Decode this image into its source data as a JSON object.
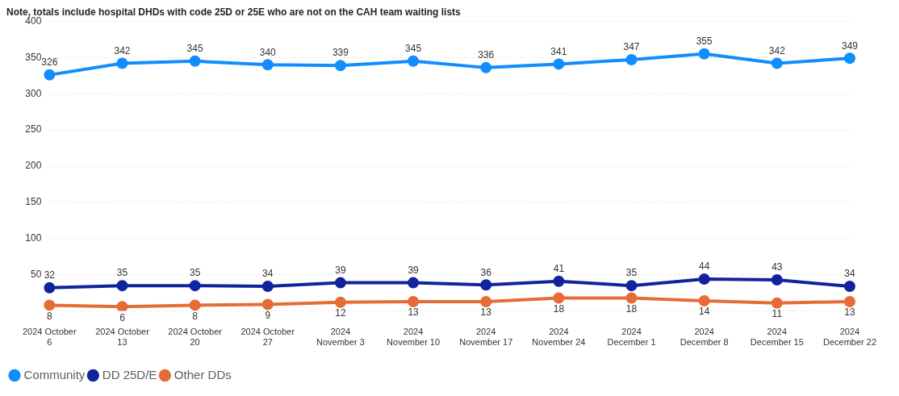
{
  "chart_data": {
    "type": "line",
    "title": "Note, totals include hospital DHDs with code 25D or 25E who are not on the CAH team waiting lists",
    "categories": [
      "2024 October 6",
      "2024 October 13",
      "2024 October 20",
      "2024 October 27",
      "2024 November 3",
      "2024 November 10",
      "2024 November 17",
      "2024 November 24",
      "2024 December 1",
      "2024 December 8",
      "2024 December 15",
      "2024 December 22"
    ],
    "series": [
      {
        "name": "Community",
        "color": "#118dff",
        "values": [
          326,
          342,
          345,
          340,
          339,
          345,
          336,
          341,
          347,
          355,
          342,
          349
        ]
      },
      {
        "name": "DD 25D/E",
        "color": "#12239e",
        "values": [
          32,
          35,
          35,
          34,
          39,
          39,
          36,
          41,
          35,
          44,
          43,
          34
        ]
      },
      {
        "name": "Other DDs",
        "color": "#e66c37",
        "values": [
          8,
          6,
          8,
          9,
          12,
          13,
          13,
          18,
          18,
          14,
          11,
          13
        ]
      }
    ],
    "ylim": [
      0,
      400
    ],
    "yticks": [
      {
        "value": 0,
        "label": null
      },
      50,
      100,
      150,
      200,
      250,
      300,
      350,
      400
    ],
    "grid": "y",
    "legend": "bottom left",
    "marker": "circle",
    "line_style": "solid",
    "data_labels": true
  }
}
